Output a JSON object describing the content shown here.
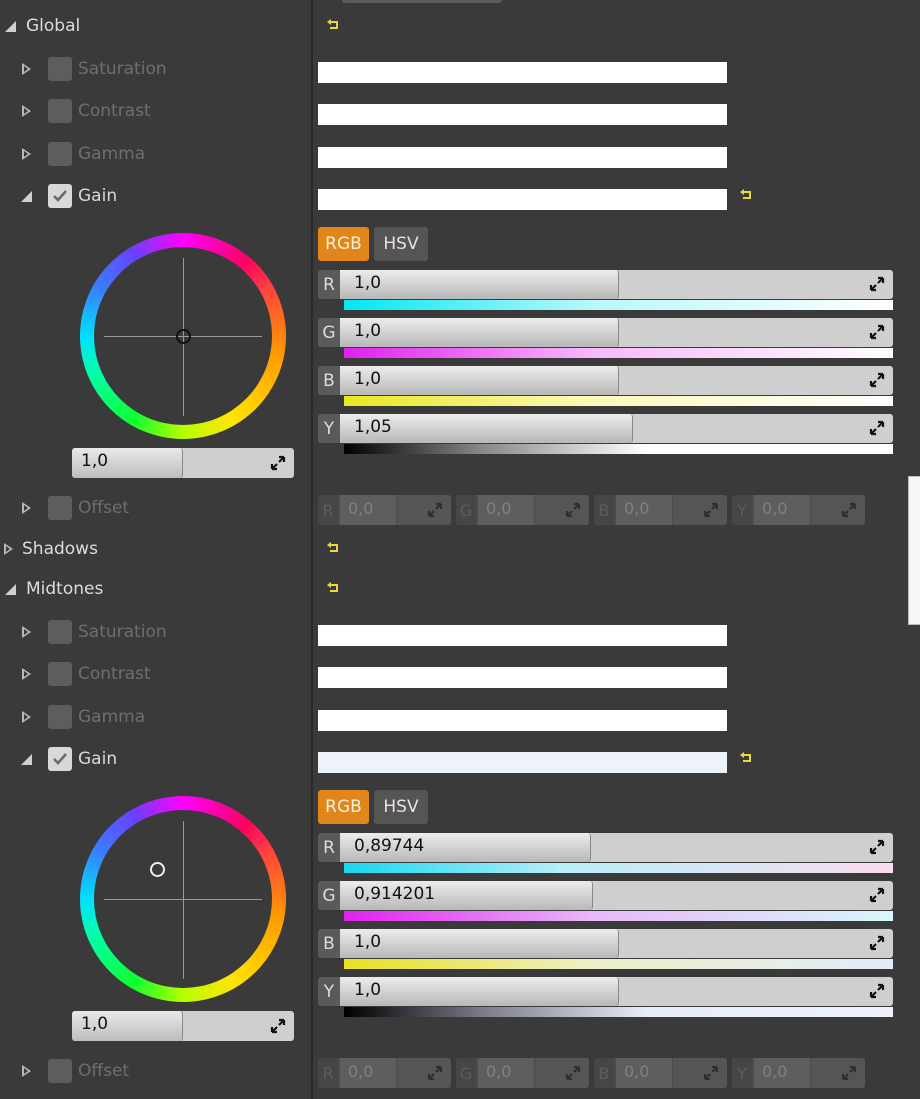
{
  "sections": {
    "global": {
      "label": "Global",
      "saturation": "Saturation",
      "contrast": "Contrast",
      "gamma": "Gamma",
      "gain": "Gain",
      "offset": "Offset",
      "wheel_value": "1,0",
      "tabs": {
        "rgb": "RGB",
        "hsv": "HSV"
      },
      "channels": [
        {
          "letter": "R",
          "value": "1,0"
        },
        {
          "letter": "G",
          "value": "1,0"
        },
        {
          "letter": "B",
          "value": "1,0"
        },
        {
          "letter": "Y",
          "value": "1,05"
        }
      ],
      "offsets": [
        {
          "letter": "R",
          "value": "0,0"
        },
        {
          "letter": "G",
          "value": "0,0"
        },
        {
          "letter": "B",
          "value": "0,0"
        },
        {
          "letter": "Y",
          "value": "0,0"
        }
      ]
    },
    "shadows": {
      "label": "Shadows"
    },
    "midtones": {
      "label": "Midtones",
      "saturation": "Saturation",
      "contrast": "Contrast",
      "gamma": "Gamma",
      "gain": "Gain",
      "offset": "Offset",
      "wheel_value": "1,0",
      "tabs": {
        "rgb": "RGB",
        "hsv": "HSV"
      },
      "channels": [
        {
          "letter": "R",
          "value": "0,89744"
        },
        {
          "letter": "G",
          "value": "0,914201"
        },
        {
          "letter": "B",
          "value": "1,0"
        },
        {
          "letter": "Y",
          "value": "1,0"
        }
      ],
      "offsets": [
        {
          "letter": "R",
          "value": "0,0"
        },
        {
          "letter": "G",
          "value": "0,0"
        },
        {
          "letter": "B",
          "value": "0,0"
        },
        {
          "letter": "Y",
          "value": "0,0"
        }
      ]
    }
  },
  "colors": {
    "accent": "#e0861a",
    "background": "#3a3a3a",
    "reset": "#e8d840"
  },
  "icons": {
    "reset": "reset-arrow-icon",
    "check": "checkmark-icon",
    "expand": "triangle-expand-icon",
    "spin": "spin-arrows-icon"
  }
}
